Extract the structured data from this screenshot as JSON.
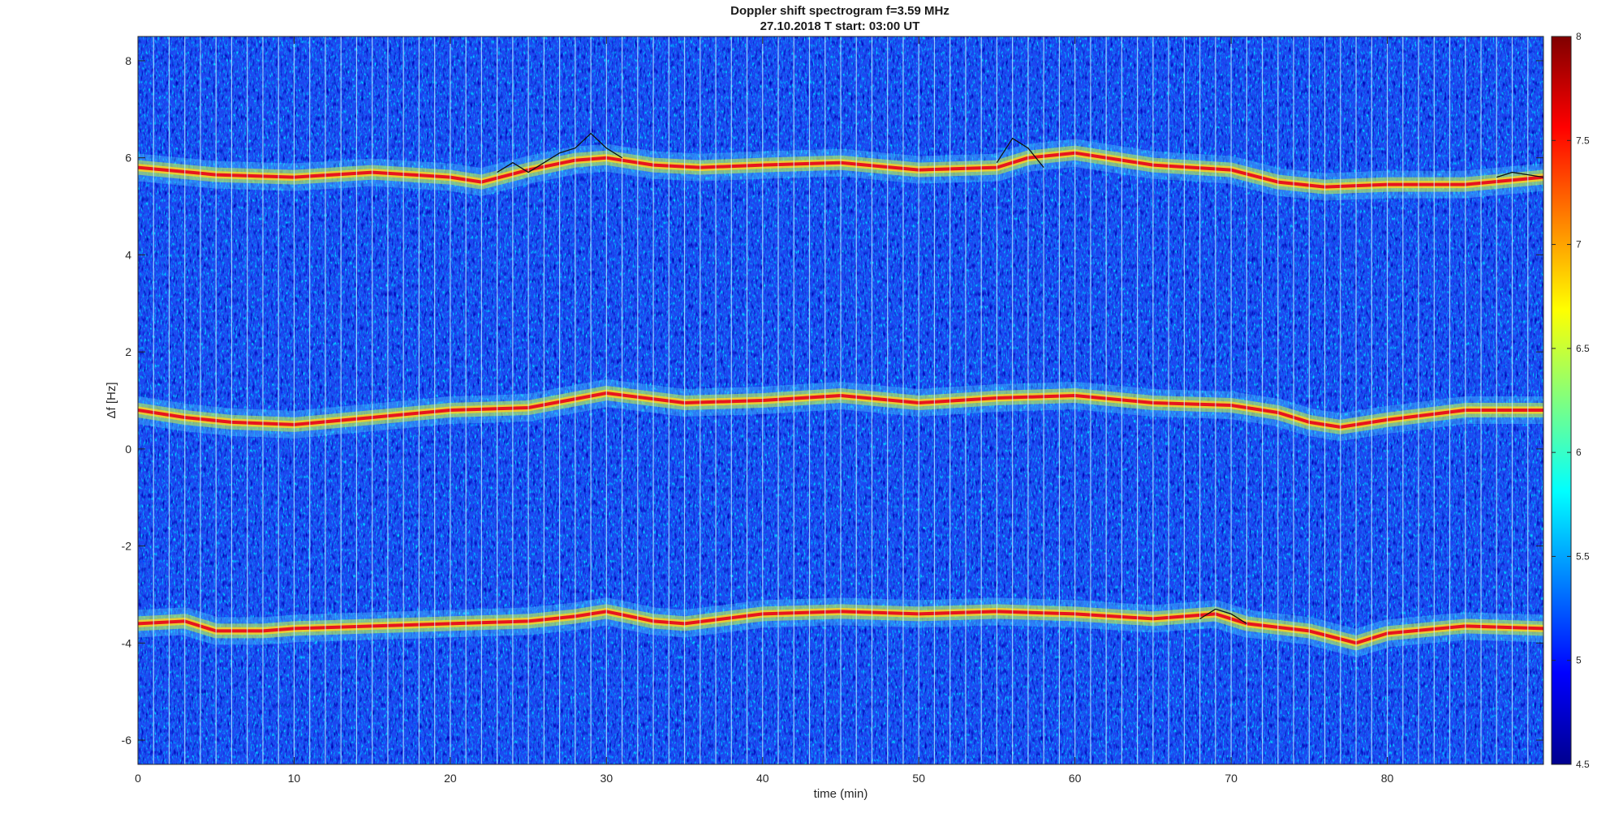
{
  "chart_data": {
    "type": "heatmap",
    "title": "Doppler shift spectrogram f=3.59 MHz",
    "subtitle": "27.10.2018   T start: 03:00 UT",
    "xlabel": "time (min)",
    "ylabel": "Δf [Hz]",
    "xlim": [
      0,
      90
    ],
    "ylim": [
      -6.5,
      8.5
    ],
    "x_ticks": [
      "0",
      "10",
      "20",
      "30",
      "40",
      "50",
      "60",
      "70",
      "80"
    ],
    "y_ticks": [
      "-6",
      "-4",
      "-2",
      "0",
      "2",
      "4",
      "6",
      "8"
    ],
    "colorbar": {
      "range": [
        4.5,
        8
      ],
      "ticks": [
        "4.5",
        "5",
        "5.5",
        "6",
        "6.5",
        "7",
        "7.5",
        "8"
      ],
      "colormap": "jet"
    },
    "background_level": 5.2,
    "series": [
      {
        "intensity": 7.9,
        "x": [
          0,
          5,
          10,
          15,
          20,
          22,
          25,
          28,
          30,
          33,
          36,
          40,
          45,
          50,
          55,
          57,
          60,
          65,
          70,
          73,
          76,
          80,
          85,
          90
        ],
        "y": [
          5.8,
          5.65,
          5.6,
          5.7,
          5.6,
          5.5,
          5.75,
          5.95,
          6.0,
          5.85,
          5.8,
          5.85,
          5.9,
          5.75,
          5.8,
          6.0,
          6.1,
          5.85,
          5.75,
          5.5,
          5.4,
          5.45,
          5.45,
          5.6
        ]
      },
      {
        "intensity": 7.9,
        "x": [
          0,
          3,
          6,
          10,
          15,
          20,
          25,
          30,
          35,
          40,
          45,
          50,
          55,
          60,
          65,
          70,
          73,
          75,
          77,
          80,
          85,
          90
        ],
        "y": [
          0.8,
          0.65,
          0.55,
          0.5,
          0.65,
          0.8,
          0.85,
          1.15,
          0.95,
          1.0,
          1.1,
          0.95,
          1.05,
          1.1,
          0.95,
          0.9,
          0.75,
          0.55,
          0.45,
          0.6,
          0.8,
          0.8
        ]
      },
      {
        "intensity": 7.9,
        "x": [
          0,
          3,
          5,
          8,
          10,
          15,
          20,
          25,
          28,
          30,
          33,
          35,
          40,
          45,
          50,
          55,
          60,
          65,
          69,
          71,
          75,
          78,
          80,
          85,
          90
        ],
        "y": [
          -3.6,
          -3.55,
          -3.75,
          -3.75,
          -3.7,
          -3.65,
          -3.6,
          -3.55,
          -3.45,
          -3.35,
          -3.55,
          -3.6,
          -3.4,
          -3.35,
          -3.4,
          -3.35,
          -3.4,
          -3.5,
          -3.4,
          -3.6,
          -3.75,
          -4.0,
          -3.8,
          -3.65,
          -3.7
        ]
      }
    ],
    "peak_traces": [
      {
        "x": [
          23,
          24,
          25,
          26,
          27,
          28,
          29,
          30,
          31
        ],
        "y": [
          5.7,
          5.9,
          5.7,
          5.9,
          6.1,
          6.2,
          6.5,
          6.2,
          6.0
        ]
      },
      {
        "x": [
          55,
          56,
          57,
          58
        ],
        "y": [
          5.9,
          6.4,
          6.2,
          5.8
        ]
      },
      {
        "x": [
          68,
          69,
          70,
          71
        ],
        "y": [
          -3.5,
          -3.3,
          -3.4,
          -3.6
        ]
      },
      {
        "x": [
          87,
          88,
          89,
          90
        ],
        "y": [
          5.6,
          5.7,
          5.65,
          5.6
        ]
      }
    ]
  }
}
